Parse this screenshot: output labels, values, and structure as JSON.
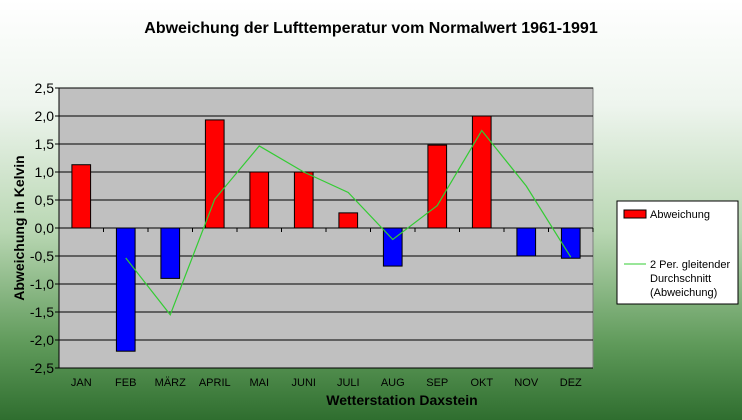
{
  "chart_data": {
    "type": "bar",
    "title": "Abweichung der Lufttemperatur vom Normalwert 1961-1991",
    "xlabel": "Wetterstation Daxstein",
    "ylabel": "Abweichung in Kelvin",
    "ylim": [
      -2.5,
      2.5
    ],
    "ytick_step": 0.5,
    "y_tick_labels": [
      "-2,5",
      "-2,0",
      "-1,5",
      "-1,0",
      "-0,5",
      "0,0",
      "0,5",
      "1,0",
      "1,5",
      "2,0",
      "2,5"
    ],
    "grid": true,
    "categories": [
      "JAN",
      "FEB",
      "MÄRZ",
      "APRIL",
      "MAI",
      "JUNI",
      "JULI",
      "AUG",
      "SEP",
      "OKT",
      "NOV",
      "DEZ"
    ],
    "series": [
      {
        "name": "Abweichung",
        "type": "bar",
        "values": [
          1.13,
          -2.2,
          -0.9,
          1.93,
          1.0,
          1.0,
          0.27,
          -0.68,
          1.48,
          2.0,
          -0.5,
          -0.54
        ],
        "positive_color": "#ff0000",
        "negative_color": "#0000ff"
      },
      {
        "name": "2 Per. gleitender Durchschnitt (Abweichung)",
        "legend_lines": [
          "2 Per. gleitender",
          "Durchschnitt",
          "(Abweichung)"
        ],
        "type": "line",
        "values": [
          null,
          -0.535,
          -1.55,
          0.515,
          1.465,
          1.0,
          0.635,
          -0.205,
          0.4,
          1.74,
          0.75,
          -0.52
        ],
        "color": "#33cc33"
      }
    ],
    "legend_position": "right"
  },
  "colors": {
    "plot_background": "#c0c0c0",
    "gridline": "#000000"
  }
}
